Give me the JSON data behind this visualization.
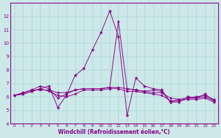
{
  "xlabel": "Windchill (Refroidissement éolien,°C)",
  "background_color": "#cce8e8",
  "grid_color": "#aad4d4",
  "line_color": "#880088",
  "x_values": [
    0,
    1,
    2,
    3,
    4,
    5,
    6,
    7,
    8,
    9,
    10,
    11,
    12,
    13,
    14,
    15,
    16,
    17,
    18,
    19,
    20,
    21,
    22,
    23
  ],
  "line1": [
    6.1,
    6.2,
    6.4,
    6.6,
    6.8,
    5.2,
    6.1,
    7.6,
    8.1,
    9.5,
    10.8,
    12.4,
    10.5,
    4.6,
    7.4,
    6.8,
    6.6,
    6.5,
    5.6,
    5.6,
    6.0,
    5.9,
    6.2,
    5.7
  ],
  "line2": [
    6.1,
    6.3,
    6.5,
    6.8,
    6.6,
    5.9,
    6.2,
    6.5,
    6.6,
    6.6,
    6.6,
    6.7,
    11.6,
    6.6,
    6.5,
    6.4,
    6.5,
    6.4,
    5.6,
    5.8,
    5.9,
    6.0,
    6.1,
    5.8
  ],
  "line3": [
    6.1,
    6.3,
    6.5,
    6.5,
    6.5,
    6.3,
    6.3,
    6.5,
    6.6,
    6.6,
    6.6,
    6.7,
    6.7,
    6.6,
    6.5,
    6.4,
    6.3,
    6.3,
    5.9,
    5.8,
    5.9,
    5.9,
    6.0,
    5.7
  ],
  "line4": [
    6.1,
    6.2,
    6.4,
    6.6,
    6.4,
    6.1,
    6.0,
    6.2,
    6.5,
    6.5,
    6.5,
    6.6,
    6.6,
    6.4,
    6.4,
    6.3,
    6.2,
    6.1,
    5.7,
    5.7,
    5.8,
    5.8,
    5.9,
    5.6
  ],
  "xlim": [
    -0.5,
    23.5
  ],
  "ylim": [
    4,
    13
  ],
  "yticks": [
    4,
    5,
    6,
    7,
    8,
    9,
    10,
    11,
    12
  ],
  "xticks": [
    0,
    1,
    2,
    3,
    4,
    5,
    6,
    7,
    8,
    9,
    10,
    11,
    12,
    13,
    14,
    15,
    16,
    17,
    18,
    19,
    20,
    21,
    22,
    23
  ]
}
